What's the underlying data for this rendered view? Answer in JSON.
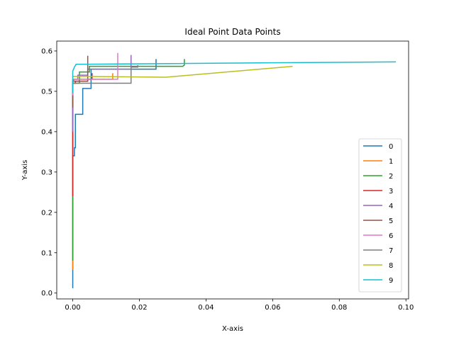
{
  "chart_data": {
    "type": "line",
    "title": "Ideal Point Data Points",
    "xlabel": "X-axis",
    "ylabel": "Y-axis",
    "xlim": [
      -0.0048,
      0.1008
    ],
    "ylim": [
      -0.0145,
      0.6245
    ],
    "xticks": [
      0.0,
      0.02,
      0.04,
      0.06,
      0.08,
      0.1
    ],
    "xtick_labels": [
      "0.00",
      "0.02",
      "0.04",
      "0.06",
      "0.08",
      "0.10"
    ],
    "yticks": [
      0.0,
      0.1,
      0.2,
      0.3,
      0.4,
      0.5,
      0.6
    ],
    "ytick_labels": [
      "0.0",
      "0.1",
      "0.2",
      "0.3",
      "0.4",
      "0.5",
      "0.6"
    ],
    "grid": false,
    "legend_position": "lower-right",
    "series": [
      {
        "name": "0",
        "color": "#1f77b4",
        "points": [
          [
            0.0,
            0.012
          ],
          [
            0.0,
            0.34
          ],
          [
            0.0005,
            0.34
          ],
          [
            0.0005,
            0.36
          ],
          [
            0.0008,
            0.36
          ],
          [
            0.0008,
            0.443
          ],
          [
            0.003,
            0.443
          ],
          [
            0.003,
            0.507
          ],
          [
            0.0055,
            0.507
          ],
          [
            0.0055,
            0.555
          ],
          [
            0.025,
            0.555
          ],
          [
            0.025,
            0.58
          ]
        ]
      },
      {
        "name": "1",
        "color": "#ff7f0e",
        "points": [
          [
            0.0,
            0.058
          ],
          [
            0.0,
            0.525
          ],
          [
            0.0003,
            0.525
          ],
          [
            0.0003,
            0.53
          ],
          [
            0.012,
            0.53
          ],
          [
            0.012,
            0.545
          ]
        ]
      },
      {
        "name": "2",
        "color": "#2ca02c",
        "points": [
          [
            0.0,
            0.08
          ],
          [
            0.0,
            0.52
          ],
          [
            0.002,
            0.52
          ],
          [
            0.002,
            0.548
          ],
          [
            0.005,
            0.548
          ],
          [
            0.005,
            0.562
          ],
          [
            0.033,
            0.562
          ],
          [
            0.0335,
            0.565
          ],
          [
            0.0335,
            0.58
          ]
        ]
      },
      {
        "name": "3",
        "color": "#d62728",
        "points": [
          [
            0.0,
            0.24
          ],
          [
            0.0,
            0.52
          ],
          [
            0.0008,
            0.52
          ],
          [
            0.0008,
            0.525
          ],
          [
            0.0045,
            0.525
          ],
          [
            0.0045,
            0.53
          ],
          [
            0.0058,
            0.53
          ],
          [
            0.0058,
            0.545
          ]
        ]
      },
      {
        "name": "4",
        "color": "#9467bd",
        "points": [
          [
            0.0,
            0.4
          ],
          [
            0.0,
            0.53
          ],
          [
            0.0015,
            0.53
          ],
          [
            0.0015,
            0.54
          ],
          [
            0.0045,
            0.54
          ],
          [
            0.0045,
            0.555
          ],
          [
            0.0175,
            0.555
          ],
          [
            0.0175,
            0.59
          ]
        ]
      },
      {
        "name": "5",
        "color": "#8c564b",
        "points": [
          [
            0.0,
            0.46
          ],
          [
            0.0,
            0.525
          ],
          [
            0.0045,
            0.525
          ],
          [
            0.0045,
            0.588
          ]
        ]
      },
      {
        "name": "6",
        "color": "#e377c2",
        "points": [
          [
            0.0,
            0.49
          ],
          [
            0.0,
            0.53
          ],
          [
            0.0135,
            0.53
          ],
          [
            0.0135,
            0.595
          ]
        ]
      },
      {
        "name": "7",
        "color": "#7f7f7f",
        "points": [
          [
            0.0,
            0.5
          ],
          [
            0.0,
            0.52
          ],
          [
            0.0175,
            0.52
          ],
          [
            0.0175,
            0.56
          ],
          [
            0.0195,
            0.56
          ],
          [
            0.0195,
            0.565
          ]
        ]
      },
      {
        "name": "8",
        "color": "#bcbd22",
        "points": [
          [
            0.0,
            0.535
          ],
          [
            0.0,
            0.537
          ],
          [
            0.028,
            0.535
          ],
          [
            0.066,
            0.562
          ]
        ]
      },
      {
        "name": "9",
        "color": "#17becf",
        "points": [
          [
            0.0,
            0.495
          ],
          [
            0.0,
            0.55
          ],
          [
            0.0005,
            0.56
          ],
          [
            0.001,
            0.567
          ],
          [
            0.097,
            0.573
          ]
        ]
      }
    ]
  }
}
